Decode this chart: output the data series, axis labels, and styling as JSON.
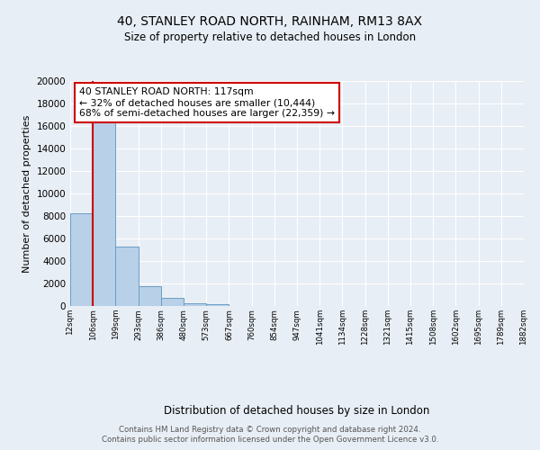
{
  "title": "40, STANLEY ROAD NORTH, RAINHAM, RM13 8AX",
  "subtitle": "Size of property relative to detached houses in London",
  "xlabel": "Distribution of detached houses by size in London",
  "ylabel": "Number of detached properties",
  "bin_labels": [
    "12sqm",
    "106sqm",
    "199sqm",
    "293sqm",
    "386sqm",
    "480sqm",
    "573sqm",
    "667sqm",
    "760sqm",
    "854sqm",
    "947sqm",
    "1041sqm",
    "1134sqm",
    "1228sqm",
    "1321sqm",
    "1415sqm",
    "1508sqm",
    "1602sqm",
    "1695sqm",
    "1789sqm",
    "1882sqm"
  ],
  "bar_values": [
    8200,
    16500,
    5300,
    1750,
    750,
    275,
    200,
    0,
    0,
    0,
    0,
    0,
    0,
    0,
    0,
    0,
    0,
    0,
    0,
    0
  ],
  "bar_color": "#b8d0e8",
  "bar_edge_color": "#6a9ec5",
  "property_line_color": "#cc0000",
  "annotation_title": "40 STANLEY ROAD NORTH: 117sqm",
  "annotation_line1": "← 32% of detached houses are smaller (10,444)",
  "annotation_line2": "68% of semi-detached houses are larger (22,359) →",
  "annotation_box_edge": "#cc0000",
  "ylim": [
    0,
    20000
  ],
  "yticks": [
    0,
    2000,
    4000,
    6000,
    8000,
    10000,
    12000,
    14000,
    16000,
    18000,
    20000
  ],
  "footer_line1": "Contains HM Land Registry data © Crown copyright and database right 2024.",
  "footer_line2": "Contains public sector information licensed under the Open Government Licence v3.0.",
  "background_color": "#e8eef5"
}
